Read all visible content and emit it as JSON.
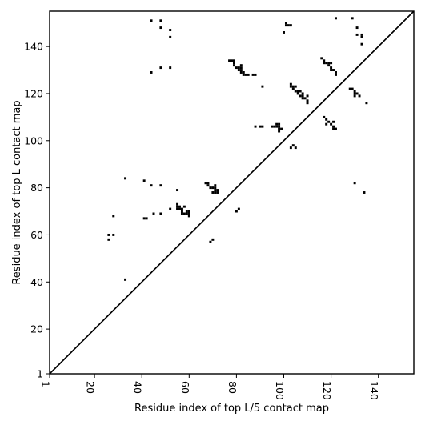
{
  "chart_data": {
    "type": "scatter",
    "title": "",
    "xlabel": "Residue index of top L/5 contact map",
    "ylabel": "Residue index of top L contact map",
    "xlim": [
      1,
      155
    ],
    "ylim": [
      1,
      155
    ],
    "xticks": [
      1,
      20,
      40,
      60,
      80,
      100,
      120,
      140
    ],
    "yticks": [
      1,
      20,
      40,
      60,
      80,
      100,
      120,
      140
    ],
    "xtick_labels": [
      "1",
      "20",
      "40",
      "60",
      "80",
      "100",
      "120",
      "140"
    ],
    "ytick_labels": [
      "1",
      "20",
      "40",
      "60",
      "80",
      "100",
      "120",
      "140"
    ],
    "xtick_rotation": "vertical",
    "diagonal": true,
    "marker": "square",
    "grid": false,
    "color": "#000000",
    "series": [
      {
        "region": "upper-left",
        "points": [
          [
            44,
            151
          ],
          [
            48,
            151
          ],
          [
            48,
            148
          ],
          [
            52,
            147
          ],
          [
            52,
            144
          ],
          [
            44,
            129
          ],
          [
            48,
            131
          ],
          [
            52,
            131
          ],
          [
            77,
            134
          ],
          [
            78,
            134
          ],
          [
            79,
            134
          ],
          [
            79,
            133
          ],
          [
            79,
            132
          ],
          [
            80,
            131
          ],
          [
            81,
            131
          ],
          [
            81,
            130
          ],
          [
            82,
            131
          ],
          [
            82,
            132
          ],
          [
            82,
            130
          ],
          [
            82,
            129
          ],
          [
            83,
            129
          ],
          [
            83,
            128
          ],
          [
            84,
            128
          ],
          [
            85,
            128
          ],
          [
            87,
            128
          ],
          [
            88,
            128
          ],
          [
            91,
            123
          ],
          [
            88,
            106
          ],
          [
            90,
            106
          ],
          [
            91,
            106
          ],
          [
            95,
            106
          ],
          [
            96,
            106
          ],
          [
            97,
            107
          ],
          [
            98,
            107
          ],
          [
            97,
            106
          ],
          [
            98,
            106
          ],
          [
            98,
            105
          ],
          [
            98,
            104
          ],
          [
            99,
            105
          ],
          [
            101,
            149
          ],
          [
            102,
            149
          ],
          [
            103,
            149
          ],
          [
            101,
            150
          ],
          [
            100,
            146
          ],
          [
            103,
            124
          ],
          [
            103,
            123
          ],
          [
            104,
            123
          ],
          [
            104,
            122
          ],
          [
            105,
            123
          ],
          [
            105,
            121
          ],
          [
            106,
            121
          ],
          [
            106,
            120
          ],
          [
            107,
            121
          ],
          [
            107,
            119
          ],
          [
            108,
            120
          ],
          [
            108,
            119
          ],
          [
            108,
            118
          ],
          [
            109,
            118
          ],
          [
            110,
            119
          ],
          [
            110,
            117
          ],
          [
            110,
            116
          ],
          [
            104,
            98
          ],
          [
            105,
            97
          ],
          [
            103,
            97
          ],
          [
            116,
            135
          ],
          [
            117,
            134
          ],
          [
            117,
            133
          ],
          [
            118,
            133
          ],
          [
            119,
            133
          ],
          [
            119,
            132
          ],
          [
            120,
            133
          ],
          [
            120,
            131
          ],
          [
            120,
            130
          ],
          [
            121,
            130
          ],
          [
            122,
            129
          ],
          [
            122,
            128
          ],
          [
            117,
            110
          ],
          [
            118,
            109
          ],
          [
            119,
            108
          ],
          [
            118,
            107
          ],
          [
            120,
            107
          ],
          [
            121,
            108
          ],
          [
            121,
            106
          ],
          [
            122,
            105
          ],
          [
            121,
            105
          ],
          [
            128,
            122
          ],
          [
            129,
            122
          ],
          [
            130,
            121
          ],
          [
            130,
            120
          ],
          [
            130,
            119
          ],
          [
            131,
            120
          ],
          [
            132,
            119
          ],
          [
            135,
            116
          ],
          [
            122,
            152
          ],
          [
            129,
            152
          ],
          [
            131,
            148
          ],
          [
            131,
            145
          ],
          [
            133,
            145
          ],
          [
            133,
            144
          ],
          [
            133,
            141
          ]
        ]
      },
      {
        "region": "lower-right",
        "points": [
          [
            33,
            84
          ],
          [
            41,
            83
          ],
          [
            44,
            81
          ],
          [
            48,
            81
          ],
          [
            55,
            79
          ],
          [
            41,
            67
          ],
          [
            42,
            67
          ],
          [
            45,
            69
          ],
          [
            48,
            69
          ],
          [
            52,
            71
          ],
          [
            55,
            73
          ],
          [
            55,
            72
          ],
          [
            56,
            72
          ],
          [
            57,
            71
          ],
          [
            58,
            72
          ],
          [
            57,
            70
          ],
          [
            57,
            69
          ],
          [
            58,
            69
          ],
          [
            59,
            69
          ],
          [
            59,
            70
          ],
          [
            60,
            70
          ],
          [
            60,
            69
          ],
          [
            60,
            68
          ],
          [
            55,
            71
          ],
          [
            56,
            71
          ],
          [
            67,
            82
          ],
          [
            68,
            82
          ],
          [
            68,
            81
          ],
          [
            69,
            80
          ],
          [
            70,
            80
          ],
          [
            71,
            81
          ],
          [
            71,
            80
          ],
          [
            71,
            79
          ],
          [
            72,
            79
          ],
          [
            70,
            78
          ],
          [
            71,
            78
          ],
          [
            72,
            78
          ],
          [
            80,
            70
          ],
          [
            81,
            71
          ],
          [
            70,
            58
          ],
          [
            69,
            57
          ],
          [
            28,
            68
          ],
          [
            26,
            60
          ],
          [
            28,
            60
          ],
          [
            26,
            58
          ],
          [
            33,
            41
          ],
          [
            130,
            82
          ],
          [
            134,
            78
          ]
        ]
      }
    ]
  }
}
